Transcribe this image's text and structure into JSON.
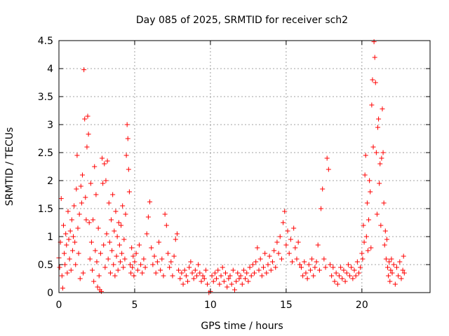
{
  "chart_data": {
    "type": "scatter",
    "title": "Day 085 of 2025, SRMTID for receiver sch2",
    "xlabel": "GPS time / hours",
    "ylabel": "SRMTID / TECUs",
    "xlim": [
      0,
      24.5
    ],
    "ylim": [
      0,
      4.5
    ],
    "x_ticks": [
      0,
      5,
      10,
      15,
      20
    ],
    "y_ticks": [
      0,
      0.5,
      1,
      1.5,
      2,
      2.5,
      3,
      3.5,
      4,
      4.5
    ],
    "x_tick_labels": [
      "0",
      "5",
      "10",
      "15",
      "20"
    ],
    "y_tick_labels": [
      "0",
      "0.5",
      "1",
      "1.5",
      "2",
      "2.5",
      "3",
      "3.5",
      "4",
      "4.5"
    ],
    "grid": true,
    "marker": "+",
    "color": "#ff0000",
    "series": [
      {
        "name": "SRMTID",
        "points": [
          [
            0.0,
            0.62
          ],
          [
            0.05,
            0.45
          ],
          [
            0.1,
            0.9
          ],
          [
            0.15,
            1.68
          ],
          [
            0.2,
            0.3
          ],
          [
            0.25,
            0.08
          ],
          [
            0.3,
            1.2
          ],
          [
            0.35,
            0.7
          ],
          [
            0.4,
            0.5
          ],
          [
            0.45,
            1.05
          ],
          [
            0.5,
            0.85
          ],
          [
            0.55,
            0.35
          ],
          [
            0.6,
            1.45
          ],
          [
            0.65,
            0.95
          ],
          [
            0.7,
            0.6
          ],
          [
            0.75,
            1.1
          ],
          [
            0.8,
            0.4
          ],
          [
            0.85,
            1.3
          ],
          [
            0.9,
            0.75
          ],
          [
            0.95,
            1.0
          ],
          [
            1.0,
            1.55
          ],
          [
            1.05,
            0.9
          ],
          [
            1.1,
            0.5
          ],
          [
            1.15,
            1.85
          ],
          [
            1.2,
            2.45
          ],
          [
            1.25,
            1.15
          ],
          [
            1.3,
            0.7
          ],
          [
            1.35,
            1.4
          ],
          [
            1.4,
            0.25
          ],
          [
            1.45,
            1.9
          ],
          [
            1.5,
            1.6
          ],
          [
            1.55,
            2.1
          ],
          [
            1.6,
            0.35
          ],
          [
            1.65,
            3.98
          ],
          [
            1.7,
            3.1
          ],
          [
            1.75,
            1.7
          ],
          [
            1.8,
            1.3
          ],
          [
            1.85,
            2.6
          ],
          [
            1.9,
            3.15
          ],
          [
            1.95,
            2.83
          ],
          [
            2.0,
            1.25
          ],
          [
            2.05,
            0.6
          ],
          [
            2.1,
            1.95
          ],
          [
            2.15,
            0.9
          ],
          [
            2.2,
            0.4
          ],
          [
            2.25,
            1.3
          ],
          [
            2.3,
            0.2
          ],
          [
            2.35,
            2.25
          ],
          [
            2.4,
            0.75
          ],
          [
            2.45,
            1.75
          ],
          [
            2.5,
            0.55
          ],
          [
            2.55,
            0.1
          ],
          [
            2.6,
            1.15
          ],
          [
            2.65,
            0.3
          ],
          [
            2.7,
            0.05
          ],
          [
            2.75,
            0.7
          ],
          [
            2.8,
            0.02
          ],
          [
            2.85,
            2.4
          ],
          [
            2.9,
            1.95
          ],
          [
            2.95,
            0.85
          ],
          [
            3.0,
            2.3
          ],
          [
            3.05,
            0.45
          ],
          [
            3.1,
            2.0
          ],
          [
            3.15,
            1.05
          ],
          [
            3.2,
            2.35
          ],
          [
            3.25,
            0.6
          ],
          [
            3.3,
            1.6
          ],
          [
            3.35,
            0.9
          ],
          [
            3.4,
            0.35
          ],
          [
            3.45,
            1.3
          ],
          [
            3.5,
            0.75
          ],
          [
            3.55,
            1.75
          ],
          [
            3.6,
            0.5
          ],
          [
            3.65,
            1.1
          ],
          [
            3.7,
            0.3
          ],
          [
            3.75,
            1.45
          ],
          [
            3.8,
            0.65
          ],
          [
            3.85,
            1.0
          ],
          [
            3.9,
            0.4
          ],
          [
            3.95,
            1.25
          ],
          [
            4.0,
            0.85
          ],
          [
            4.05,
            0.55
          ],
          [
            4.1,
            1.2
          ],
          [
            4.15,
            0.7
          ],
          [
            4.2,
            1.55
          ],
          [
            4.25,
            0.45
          ],
          [
            4.3,
            0.95
          ],
          [
            4.35,
            0.6
          ],
          [
            4.4,
            1.4
          ],
          [
            4.45,
            2.45
          ],
          [
            4.5,
            3.0
          ],
          [
            4.55,
            2.75
          ],
          [
            4.6,
            2.2
          ],
          [
            4.65,
            1.8
          ],
          [
            4.7,
            0.5
          ],
          [
            4.75,
            0.35
          ],
          [
            4.8,
            0.8
          ],
          [
            4.85,
            0.45
          ],
          [
            4.9,
            0.65
          ],
          [
            4.95,
            0.3
          ],
          [
            5.0,
            0.55
          ],
          [
            5.1,
            0.7
          ],
          [
            5.2,
            0.4
          ],
          [
            5.3,
            0.85
          ],
          [
            5.4,
            0.5
          ],
          [
            5.5,
            0.35
          ],
          [
            5.6,
            0.6
          ],
          [
            5.7,
            0.45
          ],
          [
            5.8,
            1.05
          ],
          [
            5.9,
            1.35
          ],
          [
            6.0,
            1.62
          ],
          [
            6.1,
            0.8
          ],
          [
            6.2,
            0.5
          ],
          [
            6.3,
            0.65
          ],
          [
            6.4,
            0.35
          ],
          [
            6.5,
            0.55
          ],
          [
            6.6,
            0.9
          ],
          [
            6.7,
            0.4
          ],
          [
            6.8,
            0.6
          ],
          [
            6.9,
            0.3
          ],
          [
            7.0,
            1.4
          ],
          [
            7.1,
            1.2
          ],
          [
            7.2,
            0.7
          ],
          [
            7.3,
            0.45
          ],
          [
            7.4,
            0.55
          ],
          [
            7.5,
            0.3
          ],
          [
            7.6,
            0.65
          ],
          [
            7.7,
            0.95
          ],
          [
            7.8,
            1.05
          ],
          [
            7.9,
            0.4
          ],
          [
            8.0,
            0.25
          ],
          [
            8.1,
            0.35
          ],
          [
            8.2,
            0.15
          ],
          [
            8.3,
            0.4
          ],
          [
            8.4,
            0.3
          ],
          [
            8.5,
            0.2
          ],
          [
            8.6,
            0.45
          ],
          [
            8.7,
            0.55
          ],
          [
            8.8,
            0.35
          ],
          [
            8.9,
            0.25
          ],
          [
            9.0,
            0.4
          ],
          [
            9.1,
            0.3
          ],
          [
            9.2,
            0.5
          ],
          [
            9.3,
            0.35
          ],
          [
            9.4,
            0.2
          ],
          [
            9.5,
            0.3
          ],
          [
            9.6,
            0.25
          ],
          [
            9.7,
            0.4
          ],
          [
            9.8,
            0.15
          ],
          [
            9.9,
            0.0
          ],
          [
            10.0,
            0.02
          ],
          [
            10.1,
            0.3
          ],
          [
            10.2,
            0.2
          ],
          [
            10.3,
            0.35
          ],
          [
            10.4,
            0.25
          ],
          [
            10.5,
            0.4
          ],
          [
            10.6,
            0.15
          ],
          [
            10.7,
            0.3
          ],
          [
            10.8,
            0.45
          ],
          [
            10.9,
            0.2
          ],
          [
            11.0,
            0.35
          ],
          [
            11.1,
            0.1
          ],
          [
            11.2,
            0.25
          ],
          [
            11.3,
            0.3
          ],
          [
            11.4,
            0.15
          ],
          [
            11.5,
            0.4
          ],
          [
            11.6,
            0.05
          ],
          [
            11.7,
            0.2
          ],
          [
            11.8,
            0.35
          ],
          [
            11.9,
            0.25
          ],
          [
            12.0,
            0.3
          ],
          [
            12.1,
            0.15
          ],
          [
            12.2,
            0.4
          ],
          [
            12.3,
            0.25
          ],
          [
            12.4,
            0.35
          ],
          [
            12.5,
            0.2
          ],
          [
            12.6,
            0.45
          ],
          [
            12.7,
            0.3
          ],
          [
            12.8,
            0.5
          ],
          [
            12.9,
            0.35
          ],
          [
            13.0,
            0.55
          ],
          [
            13.1,
            0.8
          ],
          [
            13.2,
            0.4
          ],
          [
            13.3,
            0.6
          ],
          [
            13.4,
            0.3
          ],
          [
            13.5,
            0.45
          ],
          [
            13.6,
            0.7
          ],
          [
            13.7,
            0.35
          ],
          [
            13.8,
            0.5
          ],
          [
            13.9,
            0.65
          ],
          [
            14.0,
            0.4
          ],
          [
            14.1,
            0.55
          ],
          [
            14.2,
            0.75
          ],
          [
            14.3,
            0.45
          ],
          [
            14.4,
            0.9
          ],
          [
            14.5,
            0.7
          ],
          [
            14.6,
            1.0
          ],
          [
            14.7,
            0.6
          ],
          [
            14.8,
            1.25
          ],
          [
            14.9,
            1.45
          ],
          [
            15.0,
            0.85
          ],
          [
            15.1,
            1.1
          ],
          [
            15.2,
            0.7
          ],
          [
            15.3,
            0.95
          ],
          [
            15.4,
            0.55
          ],
          [
            15.5,
            1.15
          ],
          [
            15.6,
            0.8
          ],
          [
            15.7,
            0.6
          ],
          [
            15.8,
            0.9
          ],
          [
            15.9,
            0.5
          ],
          [
            16.0,
            0.45
          ],
          [
            16.1,
            0.3
          ],
          [
            16.2,
            0.55
          ],
          [
            16.3,
            0.35
          ],
          [
            16.4,
            0.25
          ],
          [
            16.5,
            0.5
          ],
          [
            16.6,
            0.4
          ],
          [
            16.7,
            0.6
          ],
          [
            16.8,
            0.3
          ],
          [
            16.9,
            0.45
          ],
          [
            17.0,
            0.55
          ],
          [
            17.1,
            0.85
          ],
          [
            17.2,
            0.4
          ],
          [
            17.3,
            1.5
          ],
          [
            17.4,
            1.85
          ],
          [
            17.5,
            0.6
          ],
          [
            17.6,
            0.45
          ],
          [
            17.7,
            2.4
          ],
          [
            17.8,
            2.2
          ],
          [
            17.9,
            0.5
          ],
          [
            18.0,
            0.3
          ],
          [
            18.1,
            0.45
          ],
          [
            18.2,
            0.2
          ],
          [
            18.3,
            0.35
          ],
          [
            18.4,
            0.15
          ],
          [
            18.5,
            0.3
          ],
          [
            18.6,
            0.45
          ],
          [
            18.7,
            0.25
          ],
          [
            18.8,
            0.4
          ],
          [
            18.9,
            0.2
          ],
          [
            19.0,
            0.35
          ],
          [
            19.1,
            0.5
          ],
          [
            19.2,
            0.3
          ],
          [
            19.3,
            0.45
          ],
          [
            19.4,
            0.25
          ],
          [
            19.5,
            0.4
          ],
          [
            19.6,
            0.3
          ],
          [
            19.7,
            0.55
          ],
          [
            19.8,
            0.35
          ],
          [
            19.9,
            0.45
          ],
          [
            20.0,
            0.7
          ],
          [
            20.05,
            0.6
          ],
          [
            20.1,
            1.2
          ],
          [
            20.15,
            0.9
          ],
          [
            20.2,
            2.1
          ],
          [
            20.25,
            2.45
          ],
          [
            20.3,
            1.0
          ],
          [
            20.35,
            1.6
          ],
          [
            20.4,
            0.75
          ],
          [
            20.45,
            1.3
          ],
          [
            20.5,
            2.0
          ],
          [
            20.55,
            1.8
          ],
          [
            20.6,
            0.8
          ],
          [
            20.65,
            3.35
          ],
          [
            20.7,
            3.8
          ],
          [
            20.75,
            2.6
          ],
          [
            20.8,
            4.48
          ],
          [
            20.85,
            4.2
          ],
          [
            20.9,
            3.75
          ],
          [
            20.95,
            2.5
          ],
          [
            21.0,
            1.4
          ],
          [
            21.05,
            2.95
          ],
          [
            21.1,
            3.1
          ],
          [
            21.15,
            1.95
          ],
          [
            21.2,
            2.3
          ],
          [
            21.25,
            1.2
          ],
          [
            21.3,
            2.4
          ],
          [
            21.35,
            3.28
          ],
          [
            21.4,
            2.5
          ],
          [
            21.45,
            1.6
          ],
          [
            21.5,
            0.85
          ],
          [
            21.55,
            1.1
          ],
          [
            21.6,
            0.6
          ],
          [
            21.65,
            0.95
          ],
          [
            21.7,
            0.45
          ],
          [
            21.75,
            0.3
          ],
          [
            21.8,
            0.55
          ],
          [
            21.85,
            0.2
          ],
          [
            21.9,
            0.4
          ],
          [
            21.95,
            0.6
          ],
          [
            22.0,
            0.35
          ],
          [
            22.1,
            0.5
          ],
          [
            22.2,
            0.15
          ],
          [
            22.3,
            0.45
          ],
          [
            22.4,
            0.3
          ],
          [
            22.5,
            0.55
          ],
          [
            22.6,
            0.25
          ],
          [
            22.7,
            0.4
          ],
          [
            22.75,
            0.65
          ],
          [
            22.8,
            0.35
          ]
        ]
      }
    ]
  }
}
